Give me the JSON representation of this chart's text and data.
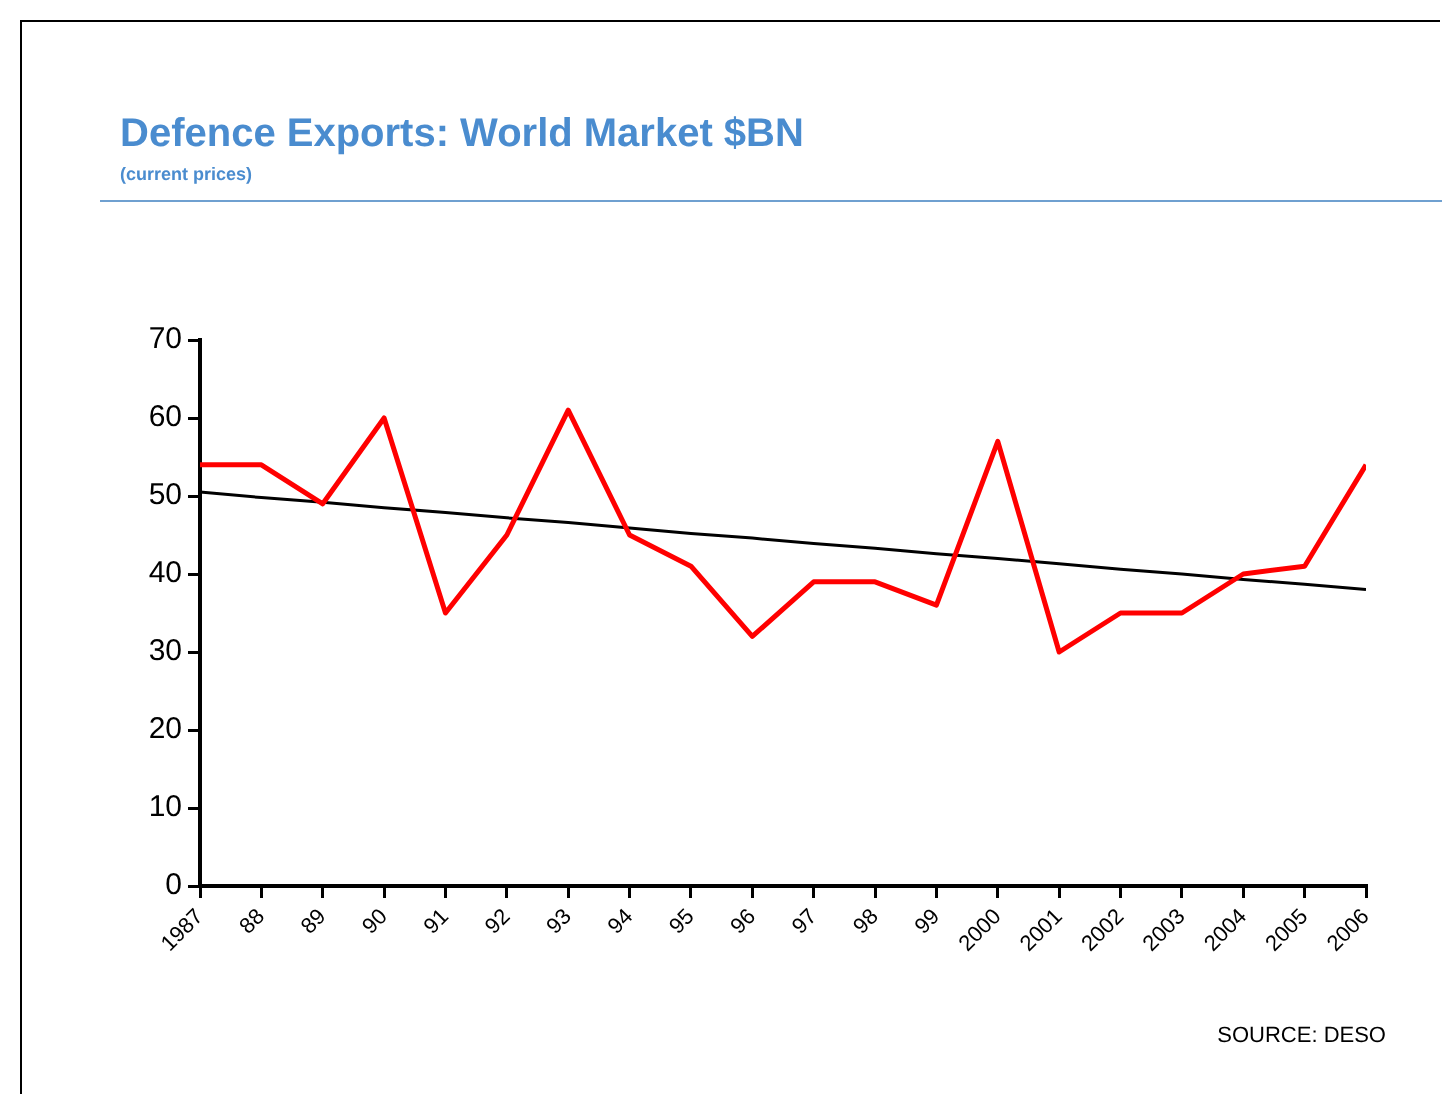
{
  "chart_data": {
    "type": "line",
    "title": "Defence Exports: World Market $BN",
    "subtitle": "(current prices)",
    "categories": [
      "1987",
      "88",
      "89",
      "90",
      "91",
      "92",
      "93",
      "94",
      "95",
      "96",
      "97",
      "98",
      "99",
      "2000",
      "2001",
      "2002",
      "2003",
      "2004",
      "2005",
      "2006"
    ],
    "series": [
      {
        "color": "#ff0000",
        "values": [
          54,
          54,
          49,
          60,
          35,
          45,
          61,
          45,
          41,
          32,
          39,
          39,
          36,
          57,
          30,
          35,
          35,
          40,
          41,
          54
        ]
      },
      {
        "type": "line",
        "color": "#000000",
        "values": [
          50.5,
          49.8,
          49.2,
          48.5,
          47.9,
          47.2,
          46.6,
          45.9,
          45.2,
          44.6,
          43.9,
          43.3,
          42.6,
          42.0,
          41.3,
          40.6,
          40.0,
          39.3,
          38.7,
          38.0
        ]
      }
    ],
    "ylim": [
      0,
      70
    ],
    "yticks": [
      0,
      10,
      20,
      30,
      40,
      50,
      60,
      70
    ],
    "grid": false,
    "legend": false,
    "marker": "none",
    "annotations": [
      "SOURCE: DESO"
    ]
  }
}
